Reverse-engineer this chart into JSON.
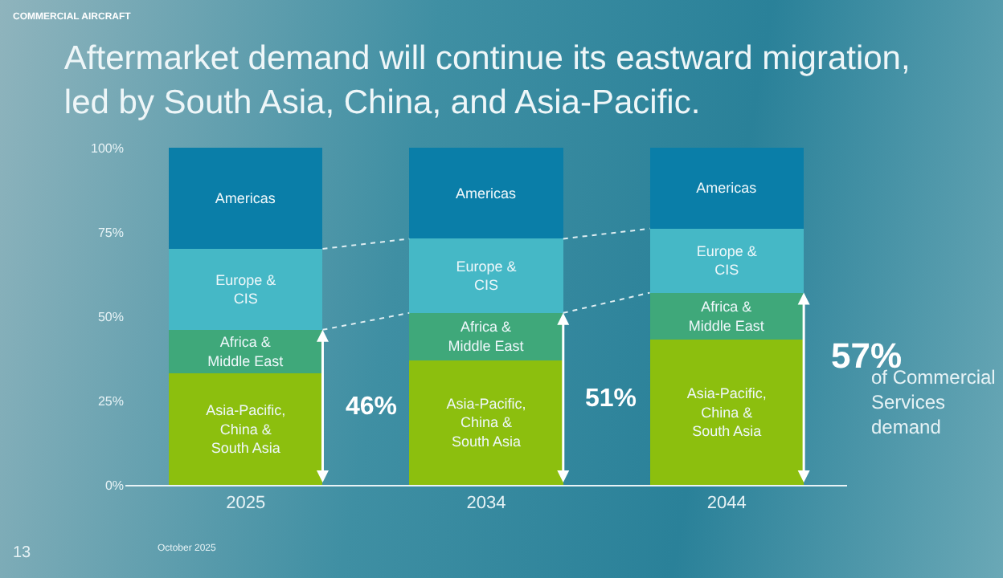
{
  "chart_data": {
    "type": "bar",
    "stacked": true,
    "title": "Aftermarket demand will continue its eastward migration, led by South Asia, China, and Asia-Pacific.",
    "subtitle": "COMMERCIAL AIRCRAFT",
    "categories": [
      "2025",
      "2034",
      "2044"
    ],
    "series": [
      {
        "name": "Asia-Pacific, China & South Asia",
        "color": "#8cbf0e",
        "values": [
          33,
          37,
          43
        ]
      },
      {
        "name": "Africa & Middle East",
        "color": "#3fa87a",
        "values": [
          13,
          14,
          14
        ]
      },
      {
        "name": "Europe & CIS",
        "color": "#45b8c6",
        "values": [
          24,
          22,
          19
        ]
      },
      {
        "name": "Americas",
        "color": "#0a7ea8",
        "values": [
          30,
          27,
          24
        ]
      }
    ],
    "ylim": [
      0,
      100
    ],
    "yticks": [
      {
        "value": 0,
        "label": "0%"
      },
      {
        "value": 25,
        "label": "25%"
      },
      {
        "value": 50,
        "label": "50%"
      },
      {
        "value": 75,
        "label": "75%"
      },
      {
        "value": 100,
        "label": "100%"
      }
    ],
    "grid": false,
    "legend": false,
    "annotations": [
      "46%",
      "51%",
      "57%",
      "of Commercial Services demand",
      "13",
      "October 2025"
    ]
  }
}
